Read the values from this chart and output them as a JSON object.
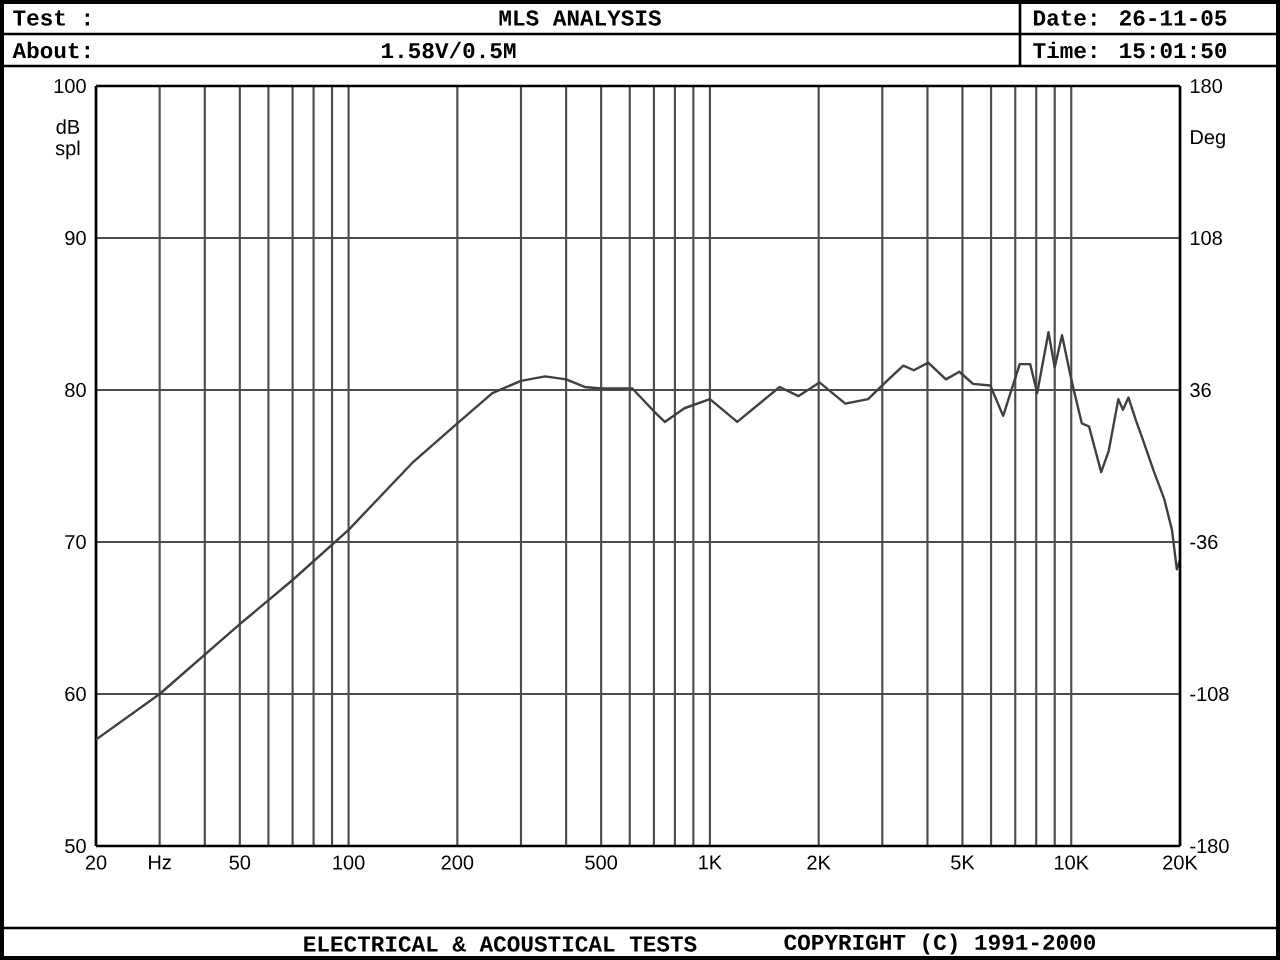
{
  "chart_data": {
    "type": "line",
    "title": "MLS ANALYSIS",
    "ylabel": "dB spl",
    "y2label": "Deg",
    "annotations": [
      "Test :",
      "About:",
      "1.58V/0.5M",
      "Date: 26-11-05",
      "Time: 15:01:50",
      "ELECTRICAL & ACOUSTICAL TESTS",
      "COPYRIGHT (C) 1991-2000"
    ],
    "x": [
      20,
      30,
      50,
      70,
      100,
      150,
      200,
      250,
      300,
      350,
      400,
      450,
      500,
      610,
      700,
      750,
      850,
      1000,
      1190,
      1560,
      1760,
      2010,
      2370,
      2740,
      3090,
      3430,
      3670,
      4020,
      4500,
      4900,
      5350,
      5970,
      6480,
      7200,
      7700,
      8050,
      8650,
      9000,
      9430,
      10000,
      10700,
      11200,
      12100,
      12700,
      13500,
      13900,
      14400,
      15100,
      15800,
      16900,
      18100,
      19000,
      19600,
      20000
    ],
    "series": [
      {
        "color": "#404040",
        "values": [
          57.0,
          60.0,
          64.6,
          67.5,
          70.8,
          75.2,
          77.8,
          79.8,
          80.6,
          80.9,
          80.7,
          80.2,
          80.1,
          80.1,
          78.6,
          77.9,
          78.8,
          79.4,
          77.9,
          80.2,
          79.6,
          80.5,
          79.1,
          79.4,
          80.6,
          81.6,
          81.3,
          81.8,
          80.7,
          81.2,
          80.4,
          80.3,
          78.3,
          81.7,
          81.7,
          79.8,
          83.8,
          81.5,
          83.6,
          80.7,
          77.8,
          77.6,
          74.6,
          76.0,
          79.4,
          78.7,
          79.5,
          78.0,
          76.7,
          74.7,
          72.8,
          70.8,
          68.2,
          68.8
        ]
      }
    ],
    "log": "x",
    "grid": true,
    "xlim": [
      20,
      20000
    ],
    "ylim": [
      50,
      100
    ],
    "y2lim": [
      -180,
      180
    ],
    "xticks": [
      20,
      {
        "value": 30,
        "label": "Hz"
      },
      {
        "value": 40,
        "label": null
      },
      50,
      {
        "value": 60,
        "label": null
      },
      {
        "value": 70,
        "label": null
      },
      {
        "value": 80,
        "label": null
      },
      {
        "value": 90,
        "label": null
      },
      100,
      200,
      {
        "value": 300,
        "label": null
      },
      {
        "value": 400,
        "label": null
      },
      500,
      {
        "value": 600,
        "label": null
      },
      {
        "value": 700,
        "label": null
      },
      {
        "value": 800,
        "label": null
      },
      {
        "value": 900,
        "label": null
      },
      {
        "value": 1000,
        "label": "1K"
      },
      {
        "value": 2000,
        "label": "2K"
      },
      {
        "value": 3000,
        "label": null
      },
      {
        "value": 4000,
        "label": null
      },
      {
        "value": 5000,
        "label": "5K"
      },
      {
        "value": 6000,
        "label": null
      },
      {
        "value": 7000,
        "label": null
      },
      {
        "value": 8000,
        "label": null
      },
      {
        "value": 9000,
        "label": null
      },
      {
        "value": 10000,
        "label": "10K"
      },
      {
        "value": 20000,
        "label": "20K"
      }
    ],
    "yticks": [
      50,
      60,
      70,
      80,
      90,
      100
    ],
    "y2ticks": [
      -180,
      -108,
      -36,
      36,
      108,
      180
    ]
  }
}
